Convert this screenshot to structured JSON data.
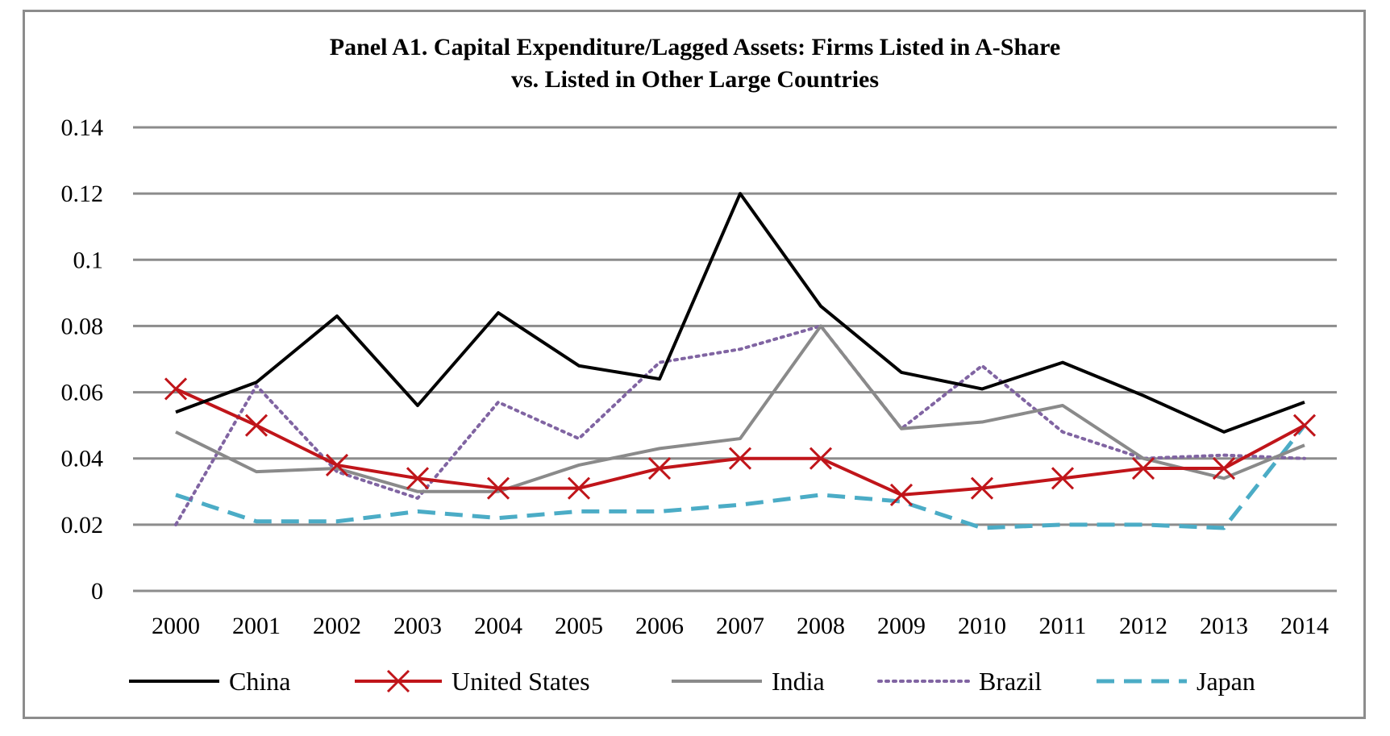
{
  "chart_data": {
    "type": "line",
    "title_lines": [
      "Panel A1. Capital  Expenditure/Lagged  Assets: Firms  Listed in A-Share",
      "vs.  Listed in Other Large Countries"
    ],
    "xlabel": "",
    "ylabel": "",
    "x": [
      "2000",
      "2001",
      "2002",
      "2003",
      "2004",
      "2005",
      "2006",
      "2007",
      "2008",
      "2009",
      "2010",
      "2011",
      "2012",
      "2013",
      "2014"
    ],
    "ylim": [
      0,
      0.14
    ],
    "yticks": [
      0,
      0.02,
      0.04,
      0.06,
      0.08,
      0.1,
      0.12,
      0.14
    ],
    "ytick_labels": [
      "0",
      "0.02",
      "0.04",
      "0.06",
      "0.08",
      "0.1",
      "0.12",
      "0.14"
    ],
    "grid": true,
    "legend_position": "bottom",
    "series": [
      {
        "name": "China",
        "color": "#000000",
        "style": "solid",
        "marker": "none",
        "values": [
          0.054,
          0.063,
          0.083,
          0.056,
          0.084,
          0.068,
          0.064,
          0.12,
          0.086,
          0.066,
          0.061,
          0.069,
          0.059,
          0.048,
          0.057
        ]
      },
      {
        "name": "United States",
        "color": "#c0151a",
        "style": "solid",
        "marker": "x",
        "values": [
          0.061,
          0.05,
          0.038,
          0.034,
          0.031,
          0.031,
          0.037,
          0.04,
          0.04,
          0.029,
          0.031,
          0.034,
          0.037,
          0.037,
          0.05
        ]
      },
      {
        "name": "India",
        "color": "#8a8a8a",
        "style": "solid",
        "marker": "none",
        "values": [
          0.048,
          0.036,
          0.037,
          0.03,
          0.03,
          0.038,
          0.043,
          0.046,
          0.08,
          0.049,
          0.051,
          0.056,
          0.04,
          0.034,
          0.044
        ]
      },
      {
        "name": "Brazil",
        "color": "#8064a2",
        "style": "dotted",
        "marker": "none",
        "values": [
          0.02,
          0.062,
          0.036,
          0.028,
          0.057,
          0.046,
          0.069,
          0.073,
          0.08,
          0.049,
          0.068,
          0.048,
          0.04,
          0.041,
          0.04
        ]
      },
      {
        "name": "Japan",
        "color": "#4bacc6",
        "style": "dashed",
        "marker": "none",
        "values": [
          0.029,
          0.021,
          0.021,
          0.024,
          0.022,
          0.024,
          0.024,
          0.026,
          0.029,
          0.027,
          0.019,
          0.02,
          0.02,
          0.019,
          0.05
        ]
      }
    ]
  }
}
